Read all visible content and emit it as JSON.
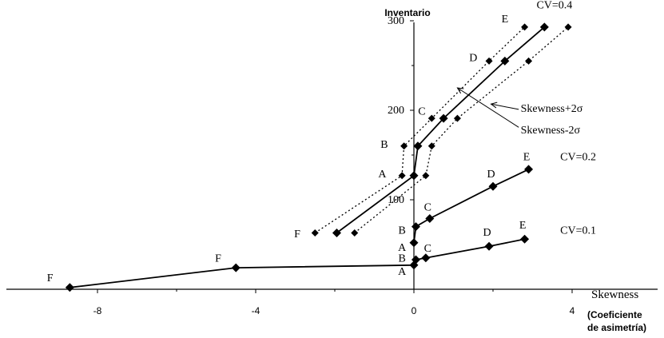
{
  "chart_data": {
    "type": "line",
    "title": "",
    "xlabel": "Skewness",
    "xlabel_note": [
      "(Coeficiente",
      "de asimetría)"
    ],
    "ylabel": "Inventario",
    "xlim": [
      -9,
      4
    ],
    "ylim": [
      -20,
      300
    ],
    "xticks": [
      -8,
      -4,
      0,
      4
    ],
    "yticks": [
      100,
      200,
      300
    ],
    "grid": false,
    "colors": {
      "line": "#000000",
      "marker": "#000000"
    },
    "series": [
      {
        "name": "CV=0.1",
        "style": "solid",
        "points": [
          {
            "label": "F",
            "x": -8.7,
            "y": 2
          },
          {
            "label": "F",
            "x": -4.5,
            "y": 24
          },
          {
            "label": "A",
            "x": 0,
            "y": 27
          },
          {
            "label": "B",
            "x": 0.05,
            "y": 33
          },
          {
            "label": "C",
            "x": 0.3,
            "y": 35
          },
          {
            "label": "D",
            "x": 1.9,
            "y": 48
          },
          {
            "label": "E",
            "x": 2.8,
            "y": 56
          }
        ]
      },
      {
        "name": "CV=0.2",
        "style": "solid",
        "points": [
          {
            "label": "A",
            "x": 0,
            "y": 52
          },
          {
            "label": "B",
            "x": 0.05,
            "y": 70
          },
          {
            "label": "C",
            "x": 0.4,
            "y": 79
          },
          {
            "label": "D",
            "x": 2.0,
            "y": 115
          },
          {
            "label": "E",
            "x": 2.9,
            "y": 134
          }
        ]
      },
      {
        "name": "CV=0.4",
        "style": "solid",
        "points": [
          {
            "label": "F",
            "x": -1.95,
            "y": 63
          },
          {
            "label": "A",
            "x": 0,
            "y": 127
          },
          {
            "label": "B",
            "x": 0.1,
            "y": 160
          },
          {
            "label": "C",
            "x": 0.75,
            "y": 191
          },
          {
            "label": "D",
            "x": 2.3,
            "y": 255
          },
          {
            "label": "E",
            "x": 3.3,
            "y": 293
          }
        ]
      },
      {
        "name": "Skewness-2σ",
        "style": "dotted",
        "points": [
          {
            "x": -2.5,
            "y": 63
          },
          {
            "x": -0.3,
            "y": 127
          },
          {
            "x": -0.25,
            "y": 160
          },
          {
            "x": 0.45,
            "y": 191
          },
          {
            "x": 1.9,
            "y": 255
          },
          {
            "x": 2.8,
            "y": 293
          }
        ]
      },
      {
        "name": "Skewness+2σ",
        "style": "dotted",
        "points": [
          {
            "x": -1.5,
            "y": 63
          },
          {
            "x": 0.3,
            "y": 127
          },
          {
            "x": 0.45,
            "y": 160
          },
          {
            "x": 1.1,
            "y": 191
          },
          {
            "x": 2.9,
            "y": 255
          },
          {
            "x": 3.9,
            "y": 293
          }
        ]
      }
    ],
    "annotations": {
      "point_letters": [
        {
          "text": "F",
          "x": -9.2,
          "y": 9
        },
        {
          "text": "F",
          "x": -4.95,
          "y": 31
        },
        {
          "text": "A",
          "x": -0.3,
          "y": 16
        },
        {
          "text": "B",
          "x": -0.3,
          "y": 31
        },
        {
          "text": "C",
          "x": 0.35,
          "y": 42
        },
        {
          "text": "D",
          "x": 1.85,
          "y": 60
        },
        {
          "text": "E",
          "x": 2.75,
          "y": 68
        },
        {
          "text": "A",
          "x": -0.3,
          "y": 43
        },
        {
          "text": "B",
          "x": -0.3,
          "y": 62
        },
        {
          "text": "C",
          "x": 0.35,
          "y": 88
        },
        {
          "text": "D",
          "x": 1.95,
          "y": 125
        },
        {
          "text": "E",
          "x": 2.85,
          "y": 144
        },
        {
          "text": "F",
          "x": -2.95,
          "y": 58
        },
        {
          "text": "A",
          "x": -0.8,
          "y": 125
        },
        {
          "text": "B",
          "x": -0.75,
          "y": 158
        },
        {
          "text": "C",
          "x": 0.2,
          "y": 195
        },
        {
          "text": "D",
          "x": 1.5,
          "y": 255
        },
        {
          "text": "E",
          "x": 2.3,
          "y": 298
        }
      ],
      "series_labels": [
        {
          "text": "CV=0.4",
          "x": 3.1,
          "y": 314
        },
        {
          "text": "CV=0.2",
          "x": 3.7,
          "y": 144
        },
        {
          "text": "CV=0.1",
          "x": 3.7,
          "y": 62
        },
        {
          "text": "Skewness+2σ",
          "x": 2.7,
          "y": 198
        },
        {
          "text": "Skewness-2σ",
          "x": 2.7,
          "y": 174
        }
      ],
      "arrows": [
        {
          "from": {
            "x": 2.65,
            "y": 201
          },
          "to": {
            "x": 1.95,
            "y": 207
          }
        },
        {
          "from": {
            "x": 2.65,
            "y": 181
          },
          "to": {
            "x": 1.1,
            "y": 225
          }
        }
      ]
    }
  }
}
